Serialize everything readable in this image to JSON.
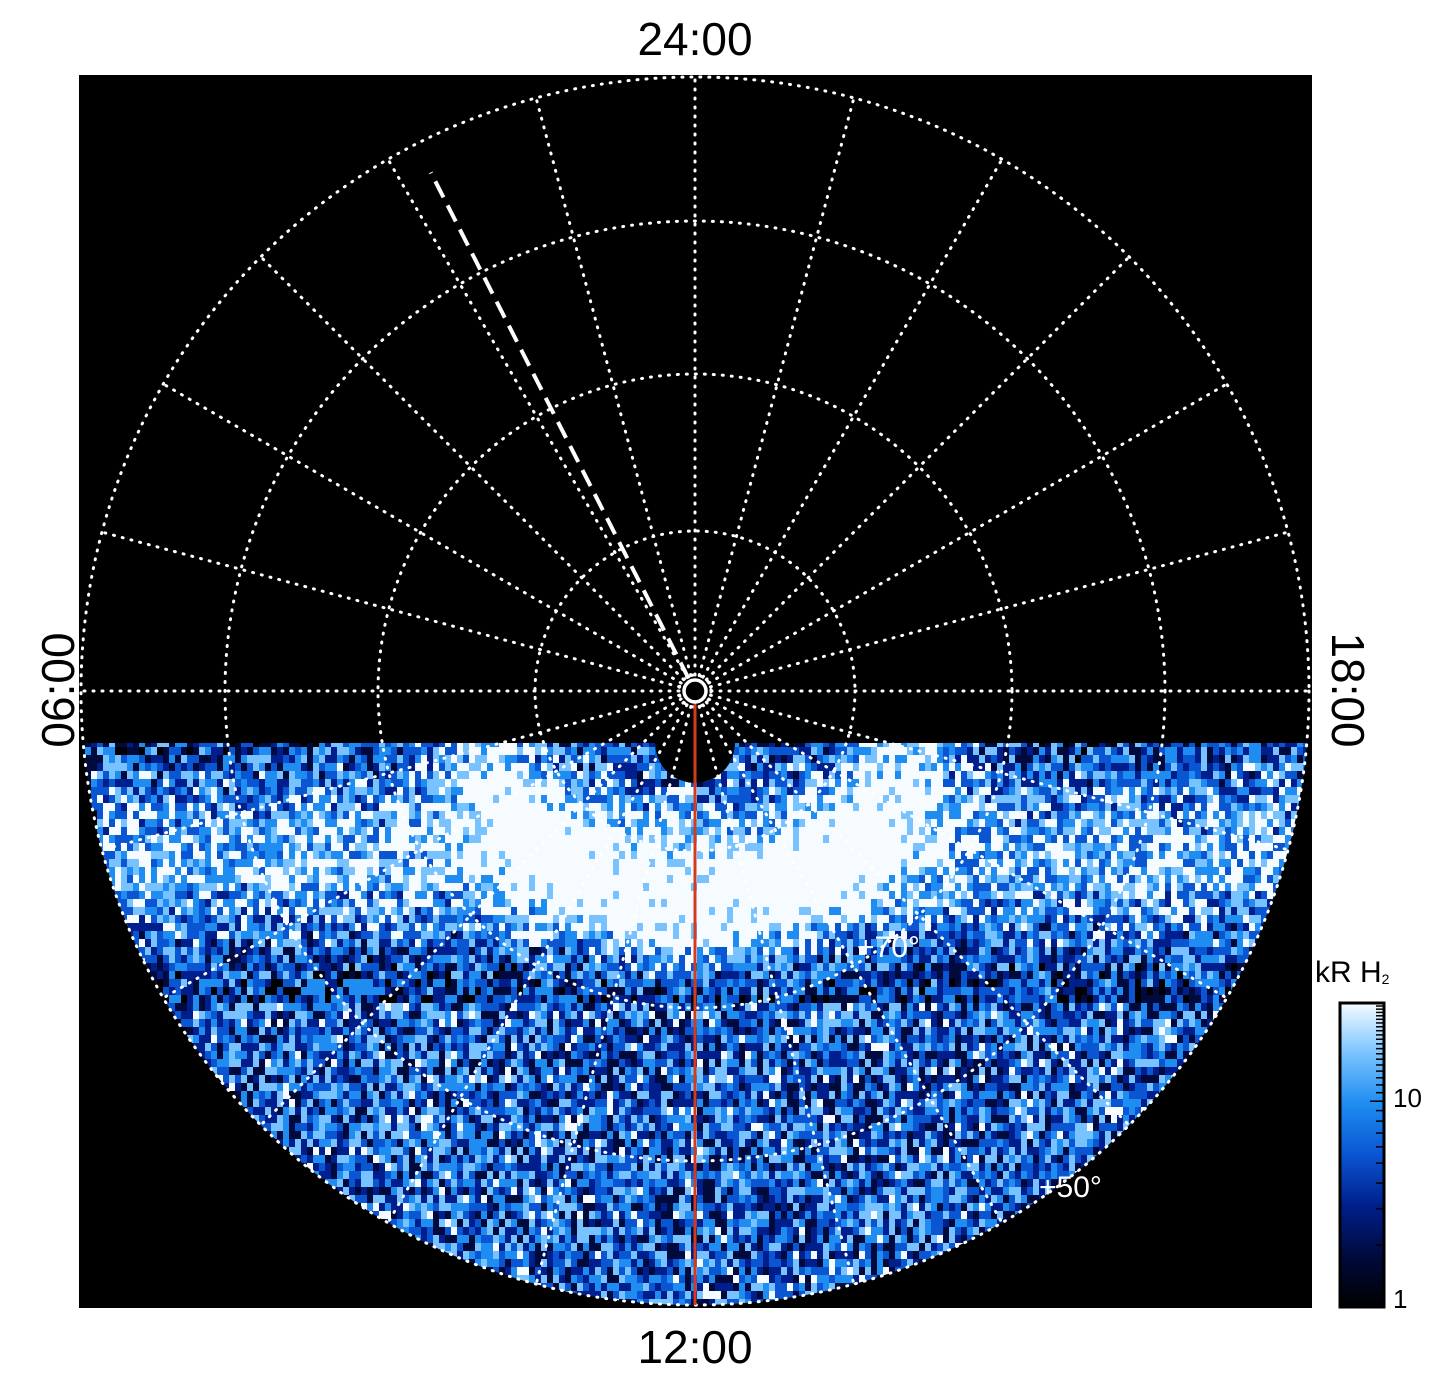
{
  "chart_data": {
    "type": "heatmap",
    "projection": "polar",
    "labels": {
      "top": "24:00",
      "bottom": "12:00",
      "left": "06:00",
      "right": "18:00"
    },
    "latitude_labels": [
      "+70°",
      "+50°"
    ],
    "colorbar": {
      "title": "kR H",
      "title_subscript": "2",
      "scale": "log",
      "ticks": [
        "10",
        "1"
      ],
      "range": [
        1,
        30
      ],
      "colors": [
        "#000000",
        "#000a3c",
        "#001f8c",
        "#0a55d2",
        "#1e8cf0",
        "#78c3ff",
        "#f5fbff"
      ]
    },
    "meridian_marker_color": "#d23c1e",
    "grid": true,
    "coverage": "dayside hemisphere only"
  }
}
